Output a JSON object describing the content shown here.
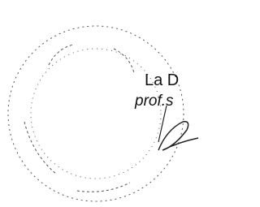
{
  "stamp": {
    "line1": "La D",
    "line2": "prof.s"
  }
}
